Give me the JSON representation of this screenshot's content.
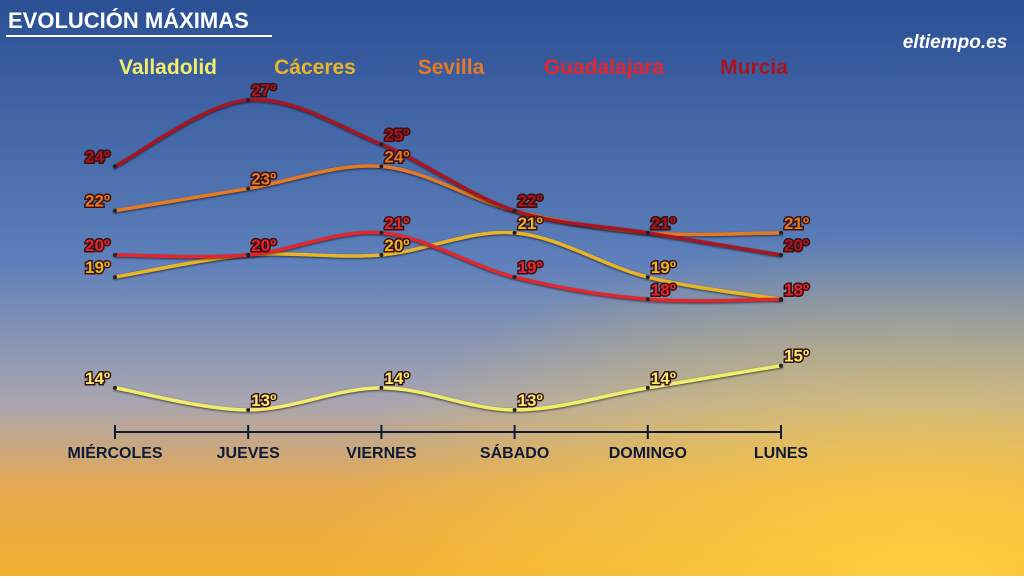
{
  "brand": "eltiempo.es",
  "chart_data": {
    "type": "line",
    "title": "EVOLUCIÓN MÁXIMAS",
    "categories": [
      "MIÉRCOLES",
      "JUEVES",
      "VIERNES",
      "SÁBADO",
      "DOMINGO",
      "LUNES"
    ],
    "series": [
      {
        "name": "Valladolid",
        "color": "#f2ee6c",
        "values": [
          14,
          13,
          14,
          13,
          14,
          15
        ],
        "value_labels": [
          "14º",
          "13º",
          "14º",
          "13º",
          "14º",
          "15º"
        ]
      },
      {
        "name": "Cáceres",
        "color": "#e9b526",
        "values": [
          19,
          20,
          20,
          21,
          19,
          18
        ],
        "value_labels": [
          "19º",
          "20º",
          "20º",
          "21º",
          "19º",
          "18º"
        ]
      },
      {
        "name": "Sevilla",
        "color": "#e57a25",
        "values": [
          22,
          23,
          24,
          22,
          21,
          21
        ],
        "value_labels": [
          "22º",
          "23º",
          "24º",
          "22º",
          "21º",
          "21º"
        ]
      },
      {
        "name": "Guadalajara",
        "color": "#e3252e",
        "values": [
          20,
          20,
          21,
          19,
          18,
          18
        ],
        "value_labels": [
          "20º",
          "20º",
          "21º",
          "19º",
          "18º",
          "18º"
        ]
      },
      {
        "name": "Murcia",
        "color": "#a9151f",
        "values": [
          24,
          27,
          25,
          22,
          21,
          20
        ],
        "value_labels": [
          "24º",
          "27º",
          "25º",
          "22º",
          "21º",
          "20º"
        ]
      }
    ]
  }
}
